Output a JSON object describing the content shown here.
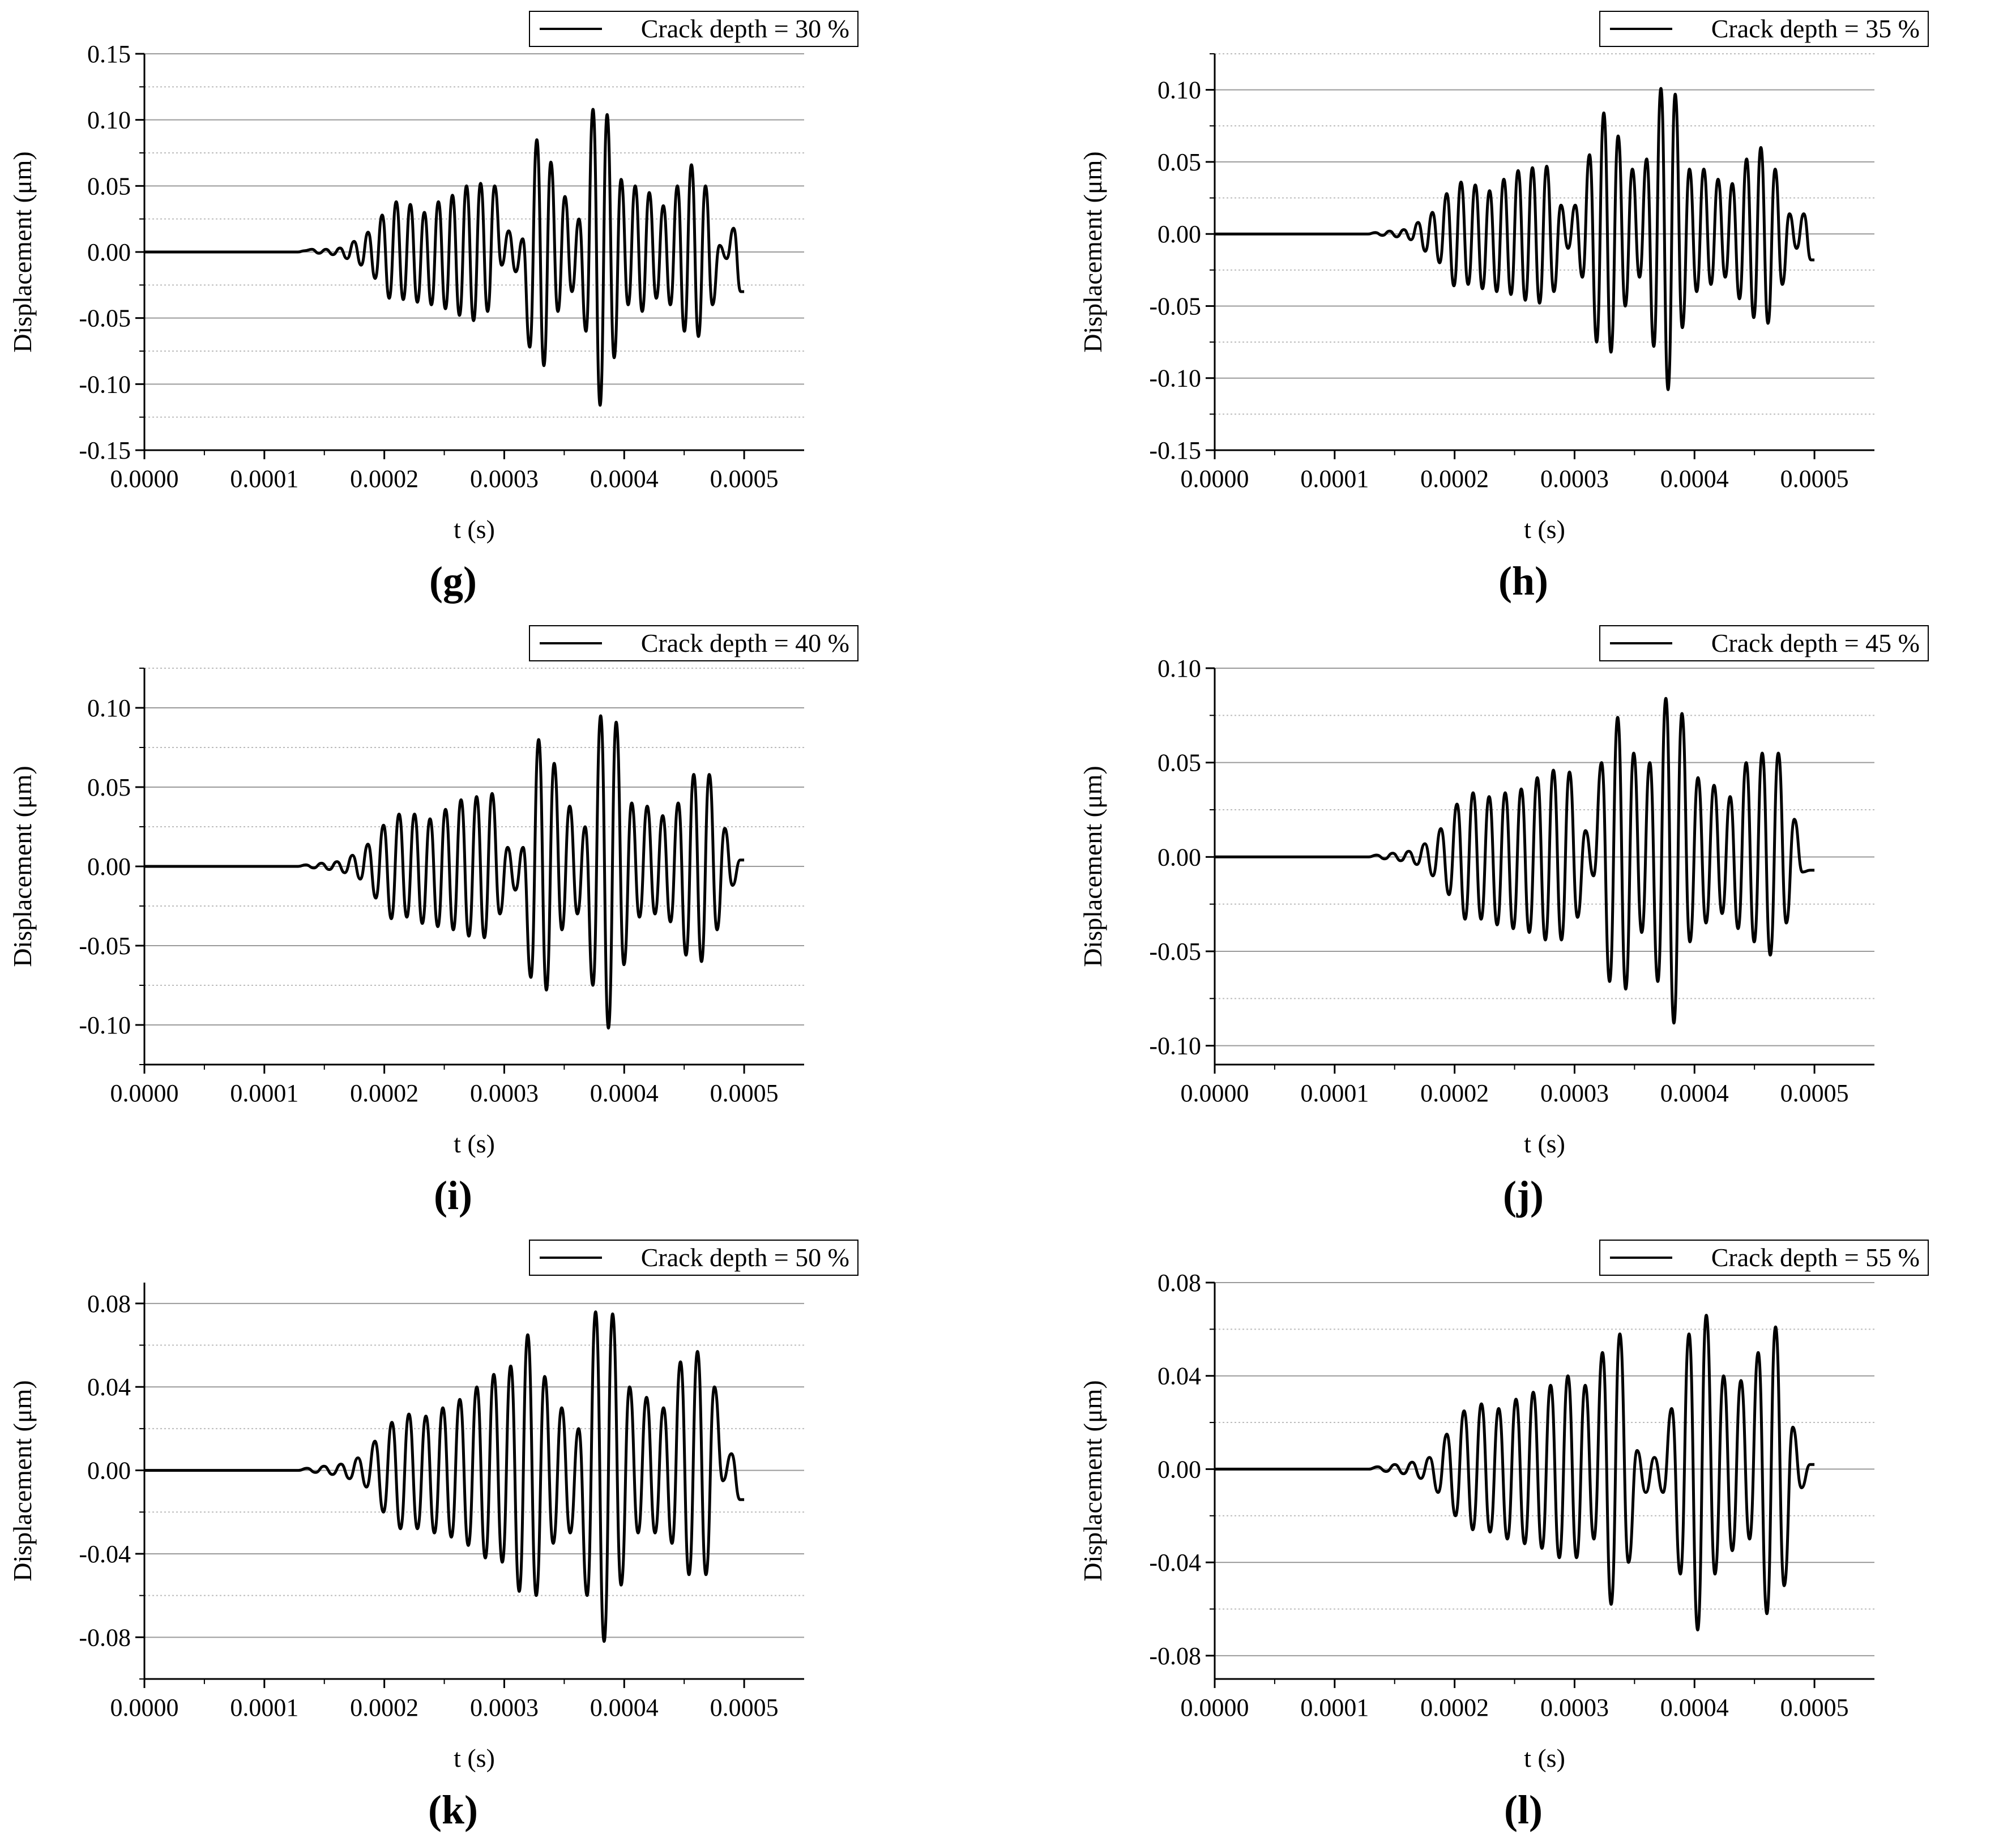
{
  "figure": {
    "x_axis_label": "t (s)",
    "y_axis_label": "Displacement (μm)"
  },
  "chart_data": [
    {
      "type": "line",
      "panel_label": "(g)",
      "legend": "Crack depth = 30 %",
      "legend_position": "top-right",
      "xlabel": "t (s)",
      "ylabel": "Displacement (μm)",
      "xlim": [
        0,
        0.00055
      ],
      "ylim": [
        -0.15,
        0.15
      ],
      "xticks": [
        "0.0000",
        "0.0001",
        "0.0002",
        "0.0003",
        "0.0004",
        "0.0005"
      ],
      "yticks": [
        "-0.15",
        "-0.10",
        "-0.05",
        "0.00",
        "0.05",
        "0.10",
        "0.15"
      ],
      "grid": true,
      "x_end": 0.0005,
      "y_end": -0.03,
      "peaks": [
        0.0,
        0.001,
        0.002,
        -0.001,
        0.002,
        -0.002,
        0.003,
        -0.005,
        0.008,
        -0.01,
        0.015,
        -0.02,
        0.028,
        -0.035,
        0.038,
        -0.036,
        0.036,
        -0.038,
        0.03,
        -0.04,
        0.038,
        -0.043,
        0.043,
        -0.048,
        0.05,
        -0.052,
        0.052,
        -0.045,
        0.05,
        -0.01,
        0.016,
        -0.015,
        0.01,
        -0.072,
        0.085,
        -0.086,
        0.068,
        -0.045,
        0.042,
        -0.03,
        0.025,
        -0.06,
        0.108,
        -0.116,
        0.104,
        -0.08,
        0.055,
        -0.04,
        0.05,
        -0.045,
        0.045,
        -0.035,
        0.035,
        -0.04,
        0.05,
        -0.06,
        0.066,
        -0.064,
        0.05,
        -0.04,
        0.005,
        -0.005,
        0.018,
        -0.03
      ]
    },
    {
      "type": "line",
      "panel_label": "(h)",
      "legend": "Crack depth = 35 %",
      "legend_position": "top-right",
      "xlabel": "t (s)",
      "ylabel": "Displacement (μm)",
      "xlim": [
        0,
        0.00055
      ],
      "ylim": [
        -0.15,
        0.125
      ],
      "xticks": [
        "0.0000",
        "0.0001",
        "0.0002",
        "0.0003",
        "0.0004",
        "0.0005"
      ],
      "yticks": [
        "-0.15",
        "-0.10",
        "-0.05",
        "0.00",
        "0.05",
        "0.10"
      ],
      "grid": true,
      "x_end": 0.0005,
      "y_end": -0.018,
      "peaks": [
        0.0,
        0.001,
        -0.001,
        0.002,
        -0.002,
        0.003,
        -0.004,
        0.008,
        -0.012,
        0.015,
        -0.02,
        0.028,
        -0.036,
        0.036,
        -0.035,
        0.034,
        -0.038,
        0.03,
        -0.04,
        0.038,
        -0.042,
        0.044,
        -0.046,
        0.046,
        -0.048,
        0.047,
        -0.04,
        0.02,
        -0.01,
        0.02,
        -0.03,
        0.055,
        -0.075,
        0.084,
        -0.082,
        0.068,
        -0.05,
        0.045,
        -0.03,
        0.052,
        -0.078,
        0.101,
        -0.108,
        0.097,
        -0.065,
        0.045,
        -0.04,
        0.045,
        -0.035,
        0.038,
        -0.03,
        0.035,
        -0.045,
        0.052,
        -0.058,
        0.06,
        -0.062,
        0.045,
        -0.035,
        0.014,
        -0.01,
        0.014,
        -0.018
      ]
    },
    {
      "type": "line",
      "panel_label": "(i)",
      "legend": "Crack depth = 40 %",
      "legend_position": "top-right",
      "xlabel": "t (s)",
      "ylabel": "Displacement (μm)",
      "xlim": [
        0,
        0.00055
      ],
      "ylim": [
        -0.125,
        0.125
      ],
      "xticks": [
        "0.0000",
        "0.0001",
        "0.0002",
        "0.0003",
        "0.0004",
        "0.0005"
      ],
      "yticks": [
        "-0.10",
        "-0.05",
        "0.00",
        "0.05",
        "0.10"
      ],
      "grid": true,
      "x_end": 0.0005,
      "y_end": 0.004,
      "peaks": [
        0.0,
        0.001,
        -0.001,
        0.002,
        -0.002,
        0.003,
        -0.004,
        0.007,
        -0.008,
        0.014,
        -0.02,
        0.026,
        -0.033,
        0.033,
        -0.032,
        0.033,
        -0.036,
        0.03,
        -0.038,
        0.036,
        -0.04,
        0.042,
        -0.044,
        0.044,
        -0.045,
        0.046,
        -0.03,
        0.012,
        -0.015,
        0.012,
        -0.07,
        0.08,
        -0.078,
        0.065,
        -0.04,
        0.038,
        -0.03,
        0.025,
        -0.075,
        0.095,
        -0.102,
        0.091,
        -0.062,
        0.04,
        -0.032,
        0.038,
        -0.03,
        0.032,
        -0.035,
        0.04,
        -0.056,
        0.058,
        -0.06,
        0.058,
        -0.04,
        0.024,
        -0.012,
        0.004
      ]
    },
    {
      "type": "line",
      "panel_label": "(j)",
      "legend": "Crack depth = 45 %",
      "legend_position": "top-right",
      "xlabel": "t (s)",
      "ylabel": "Displacement (μm)",
      "xlim": [
        0,
        0.00055
      ],
      "ylim": [
        -0.11,
        0.1
      ],
      "xticks": [
        "0.0000",
        "0.0001",
        "0.0002",
        "0.0003",
        "0.0004",
        "0.0005"
      ],
      "yticks": [
        "-0.10",
        "-0.05",
        "0.00",
        "0.05",
        "0.10"
      ],
      "grid": true,
      "x_end": 0.0005,
      "y_end": -0.007,
      "peaks": [
        0.0,
        0.001,
        -0.001,
        0.002,
        -0.002,
        0.003,
        -0.004,
        0.007,
        -0.01,
        0.015,
        -0.02,
        0.028,
        -0.033,
        0.034,
        -0.033,
        0.032,
        -0.036,
        0.034,
        -0.038,
        0.036,
        -0.04,
        0.042,
        -0.044,
        0.046,
        -0.044,
        0.045,
        -0.032,
        0.014,
        -0.01,
        0.05,
        -0.066,
        0.074,
        -0.07,
        0.055,
        -0.04,
        0.05,
        -0.066,
        0.084,
        -0.088,
        0.076,
        -0.045,
        0.042,
        -0.035,
        0.038,
        -0.03,
        0.032,
        -0.038,
        0.05,
        -0.045,
        0.055,
        -0.052,
        0.055,
        -0.035,
        0.02,
        -0.008,
        -0.007
      ]
    },
    {
      "type": "line",
      "panel_label": "(k)",
      "legend": "Crack depth = 50 %",
      "legend_position": "top-right",
      "xlabel": "t (s)",
      "ylabel": "Displacement (μm)",
      "xlim": [
        0,
        0.00055
      ],
      "ylim": [
        -0.1,
        0.09
      ],
      "xticks": [
        "0.0000",
        "0.0001",
        "0.0002",
        "0.0003",
        "0.0004",
        "0.0005"
      ],
      "yticks": [
        "-0.08",
        "-0.04",
        "0.00",
        "0.04",
        "0.08"
      ],
      "grid": true,
      "x_end": 0.0005,
      "y_end": -0.014,
      "peaks": [
        0.0,
        0.001,
        -0.001,
        0.002,
        -0.002,
        0.003,
        -0.004,
        0.006,
        -0.008,
        0.014,
        -0.02,
        0.023,
        -0.028,
        0.027,
        -0.028,
        0.026,
        -0.03,
        0.03,
        -0.032,
        0.034,
        -0.036,
        0.04,
        -0.042,
        0.046,
        -0.044,
        0.05,
        -0.058,
        0.065,
        -0.06,
        0.045,
        -0.035,
        0.03,
        -0.03,
        0.02,
        -0.06,
        0.076,
        -0.082,
        0.075,
        -0.055,
        0.04,
        -0.03,
        0.035,
        -0.03,
        0.03,
        -0.035,
        0.052,
        -0.05,
        0.057,
        -0.05,
        0.04,
        -0.005,
        0.008,
        -0.014
      ]
    },
    {
      "type": "line",
      "panel_label": "(l)",
      "legend": "Crack depth = 55 %",
      "legend_position": "top-right",
      "xlabel": "t (s)",
      "ylabel": "Displacement (μm)",
      "xlim": [
        0,
        0.00055
      ],
      "ylim": [
        -0.09,
        0.08
      ],
      "xticks": [
        "0.0000",
        "0.0001",
        "0.0002",
        "0.0003",
        "0.0004",
        "0.0005"
      ],
      "yticks": [
        "-0.08",
        "-0.04",
        "0.00",
        "0.04",
        "0.08"
      ],
      "grid": true,
      "x_end": 0.0005,
      "y_end": 0.002,
      "peaks": [
        0.0,
        0.001,
        -0.001,
        0.002,
        -0.002,
        0.003,
        -0.004,
        0.005,
        -0.01,
        0.015,
        -0.02,
        0.025,
        -0.026,
        0.028,
        -0.027,
        0.026,
        -0.03,
        0.03,
        -0.032,
        0.033,
        -0.034,
        0.036,
        -0.038,
        0.04,
        -0.038,
        0.036,
        -0.03,
        0.05,
        -0.058,
        0.058,
        -0.04,
        0.008,
        -0.01,
        0.005,
        -0.01,
        0.026,
        -0.045,
        0.058,
        -0.069,
        0.066,
        -0.045,
        0.04,
        -0.035,
        0.038,
        -0.03,
        0.05,
        -0.062,
        0.061,
        -0.05,
        0.018,
        -0.008,
        0.002
      ]
    }
  ]
}
